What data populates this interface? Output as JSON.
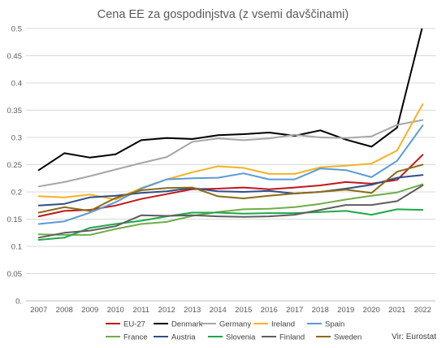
{
  "chart_data": {
    "type": "line",
    "title": "Cena EE za gospodinjstva (z vsemi davščinami)",
    "source": "Vir: Eurostat",
    "xlabel": "",
    "ylabel": "",
    "ylim": [
      0,
      0.5
    ],
    "yticks": [
      "0.",
      "0.05",
      "0.1",
      "0.15",
      "0.2",
      "0.25",
      "0.3",
      "0.35",
      "0.4",
      "0.45",
      "0.5"
    ],
    "x": [
      "2007",
      "2008",
      "2009",
      "2010",
      "2011",
      "2012",
      "2013",
      "2014",
      "2015",
      "2016",
      "2017",
      "2018",
      "2019",
      "2020",
      "2021",
      "2022"
    ],
    "grid": true,
    "legend_position": "bottom",
    "series": [
      {
        "name": "EU-27",
        "color": "#c0171c",
        "values": [
          0.155,
          0.165,
          0.167,
          0.175,
          0.187,
          0.196,
          0.205,
          0.206,
          0.208,
          0.205,
          0.208,
          0.212,
          0.218,
          0.215,
          0.222,
          0.268
        ]
      },
      {
        "name": "Denmark",
        "color": "#000000",
        "values": [
          0.24,
          0.271,
          0.263,
          0.269,
          0.295,
          0.299,
          0.297,
          0.304,
          0.306,
          0.309,
          0.303,
          0.313,
          0.296,
          0.283,
          0.318,
          0.505
        ]
      },
      {
        "name": "Germany",
        "color": "#a6a6a6",
        "values": [
          0.21,
          0.218,
          0.229,
          0.241,
          0.253,
          0.264,
          0.292,
          0.298,
          0.295,
          0.298,
          0.305,
          0.3,
          0.299,
          0.302,
          0.323,
          0.332
        ]
      },
      {
        "name": "Ireland",
        "color": "#f2b324",
        "values": [
          0.192,
          0.19,
          0.195,
          0.186,
          0.207,
          0.223,
          0.236,
          0.247,
          0.244,
          0.233,
          0.233,
          0.245,
          0.248,
          0.252,
          0.276,
          0.361
        ]
      },
      {
        "name": "Spain",
        "color": "#5b9bd5",
        "values": [
          0.141,
          0.146,
          0.162,
          0.181,
          0.206,
          0.223,
          0.225,
          0.226,
          0.234,
          0.223,
          0.223,
          0.243,
          0.24,
          0.227,
          0.257,
          0.322
        ]
      },
      {
        "name": "France",
        "color": "#70ad47",
        "values": [
          0.122,
          0.121,
          0.121,
          0.132,
          0.141,
          0.145,
          0.156,
          0.163,
          0.168,
          0.169,
          0.172,
          0.178,
          0.186,
          0.193,
          0.199,
          0.214
        ]
      },
      {
        "name": "Austria",
        "color": "#2f4e8a",
        "values": [
          0.175,
          0.178,
          0.19,
          0.193,
          0.198,
          0.201,
          0.207,
          0.201,
          0.2,
          0.202,
          0.197,
          0.2,
          0.206,
          0.213,
          0.226,
          0.231
        ]
      },
      {
        "name": "Slovenia",
        "color": "#1fa84a",
        "values": [
          0.112,
          0.116,
          0.134,
          0.141,
          0.147,
          0.155,
          0.162,
          0.162,
          0.16,
          0.161,
          0.161,
          0.163,
          0.165,
          0.158,
          0.168,
          0.167
        ]
      },
      {
        "name": "Finland",
        "color": "#5e5e5e",
        "values": [
          0.116,
          0.125,
          0.129,
          0.137,
          0.157,
          0.156,
          0.157,
          0.155,
          0.154,
          0.155,
          0.158,
          0.167,
          0.176,
          0.176,
          0.183,
          0.212
        ]
      },
      {
        "name": "Sweden",
        "color": "#8c6b16",
        "values": [
          0.162,
          0.172,
          0.165,
          0.189,
          0.203,
          0.207,
          0.208,
          0.192,
          0.188,
          0.193,
          0.197,
          0.2,
          0.204,
          0.198,
          0.237,
          0.25
        ]
      }
    ]
  }
}
